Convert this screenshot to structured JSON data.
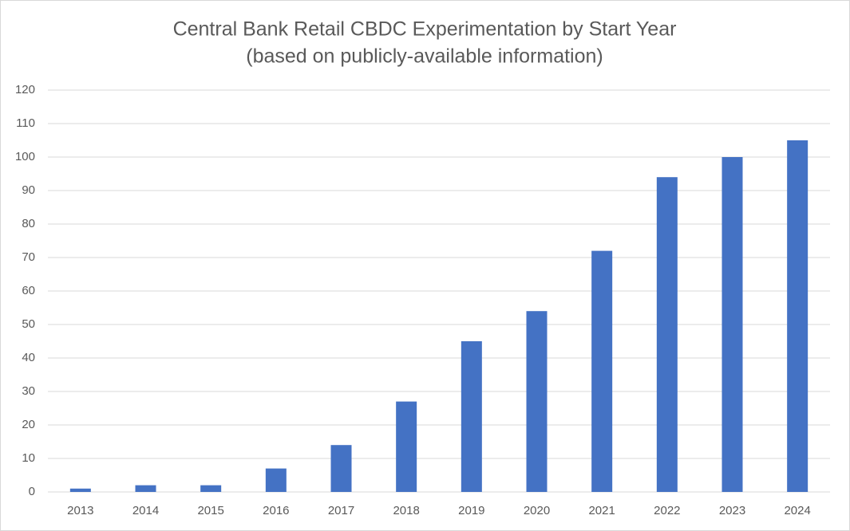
{
  "chart_data": {
    "type": "bar",
    "title": "Central Bank Retail CBDC Experimentation by Start Year",
    "subtitle": "(based on publicly-available information)",
    "categories": [
      "2013",
      "2014",
      "2015",
      "2016",
      "2017",
      "2018",
      "2019",
      "2020",
      "2021",
      "2022",
      "2023",
      "2024"
    ],
    "values": [
      1,
      2,
      2,
      7,
      14,
      27,
      45,
      54,
      72,
      94,
      100,
      105
    ],
    "color": "#4472c4",
    "ylim": [
      0,
      120
    ],
    "yticks": [
      0,
      10,
      20,
      30,
      40,
      50,
      60,
      70,
      80,
      90,
      100,
      110,
      120
    ],
    "grid": true
  }
}
